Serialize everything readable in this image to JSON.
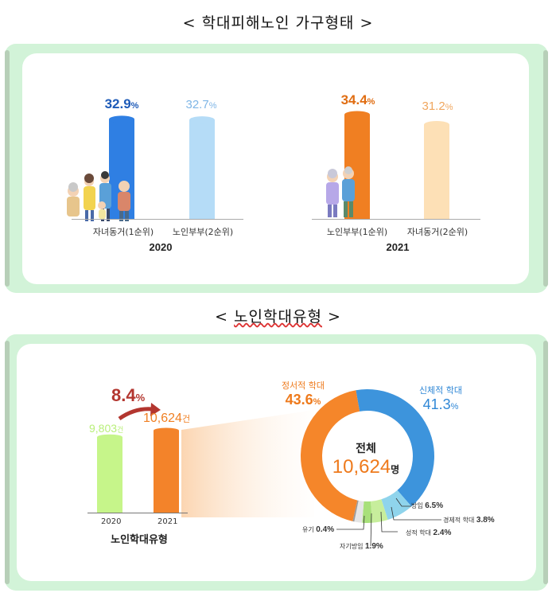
{
  "titles": {
    "household": "< 학대피해노인 가구형태 >",
    "abuse_open": "<",
    "abuse_main": "노인학대유형",
    "abuse_close": ">"
  },
  "household_2020": {
    "year": "2020",
    "bars": [
      {
        "label": "자녀동거(1순위)",
        "value": 32.9,
        "display": "32.9",
        "unit": "%",
        "color": "#2f7fe3",
        "text_color": "#1e5bb8"
      },
      {
        "label": "노인부부(2순위)",
        "value": 32.7,
        "display": "32.7",
        "unit": "%",
        "color": "#b5dcf7",
        "text_color": "#7fb6e6"
      }
    ]
  },
  "household_2021": {
    "year": "2021",
    "bars": [
      {
        "label": "노인부부(1순위)",
        "value": 34.4,
        "display": "34.4",
        "unit": "%",
        "color": "#f07f22",
        "text_color": "#e06d12"
      },
      {
        "label": "자녀동거(2순위)",
        "value": 31.2,
        "display": "31.2",
        "unit": "%",
        "color": "#fde0b6",
        "text_color": "#f0a65e"
      }
    ]
  },
  "cases": {
    "title": "노인학대유형",
    "growth": "8.4",
    "growth_unit": "%",
    "bars": [
      {
        "year": "2020",
        "value": 9803,
        "display": "9,803",
        "unit": "건",
        "color": "#c6f58a"
      },
      {
        "year": "2021",
        "value": 10624,
        "display": "10,624",
        "unit": "건",
        "color": "#f3832a"
      }
    ]
  },
  "donut": {
    "center_label": "전체",
    "center_value": "10,624",
    "center_unit": "명",
    "segments": [
      {
        "name": "정서적 학대",
        "value": 43.6,
        "color": "#f5862a"
      },
      {
        "name": "신체적 학대",
        "value": 41.3,
        "color": "#3d94dc"
      },
      {
        "name": "방임",
        "value": 6.5,
        "color": "#8fd4ec"
      },
      {
        "name": "경제적 학대",
        "value": 3.8,
        "color": "#c7ee9c"
      },
      {
        "name": "성적 학대",
        "value": 2.4,
        "color": "#a8e07a"
      },
      {
        "name": "자기방임",
        "value": 1.9,
        "color": "#e5e5e5"
      },
      {
        "name": "유기",
        "value": 0.4,
        "color": "#9a9a9a"
      }
    ],
    "labels": {
      "emotional": {
        "name": "정서적 학대",
        "value": "43.6",
        "unit": "%",
        "color": "#ee7a1c"
      },
      "physical": {
        "name": "신체적 학대",
        "value": "41.3",
        "unit": "%",
        "color": "#2f87d6"
      },
      "neglect": {
        "name": "방임",
        "value": "6.5",
        "unit": "%"
      },
      "financial": {
        "name": "경제적 학대",
        "value": "3.8",
        "unit": "%"
      },
      "sexual": {
        "name": "성적 학대",
        "value": "2.4",
        "unit": "%"
      },
      "self_neglect": {
        "name": "자기방임",
        "value": "1.9",
        "unit": "%"
      },
      "abandon": {
        "name": "유기",
        "value": "0.4",
        "unit": "%"
      }
    }
  },
  "chart_data": [
    {
      "type": "bar",
      "title": "2020",
      "categories": [
        "자녀동거(1순위)",
        "노인부부(2순위)"
      ],
      "values": [
        32.9,
        32.7
      ],
      "ylabel": "",
      "xlabel": "2020"
    },
    {
      "type": "bar",
      "title": "2021",
      "categories": [
        "노인부부(1순위)",
        "자녀동거(2순위)"
      ],
      "values": [
        34.4,
        31.2
      ],
      "ylabel": "",
      "xlabel": "2021"
    },
    {
      "type": "bar",
      "title": "노인학대유형",
      "categories": [
        "2020",
        "2021"
      ],
      "values": [
        9803,
        10624
      ],
      "annotation": "8.4%"
    },
    {
      "type": "pie",
      "categories": [
        "정서적 학대",
        "신체적 학대",
        "방임",
        "경제적 학대",
        "성적 학대",
        "자기방임",
        "유기"
      ],
      "values": [
        43.6,
        41.3,
        6.5,
        3.8,
        2.4,
        1.9,
        0.4
      ],
      "center_text": "전체 10,624명"
    }
  ]
}
